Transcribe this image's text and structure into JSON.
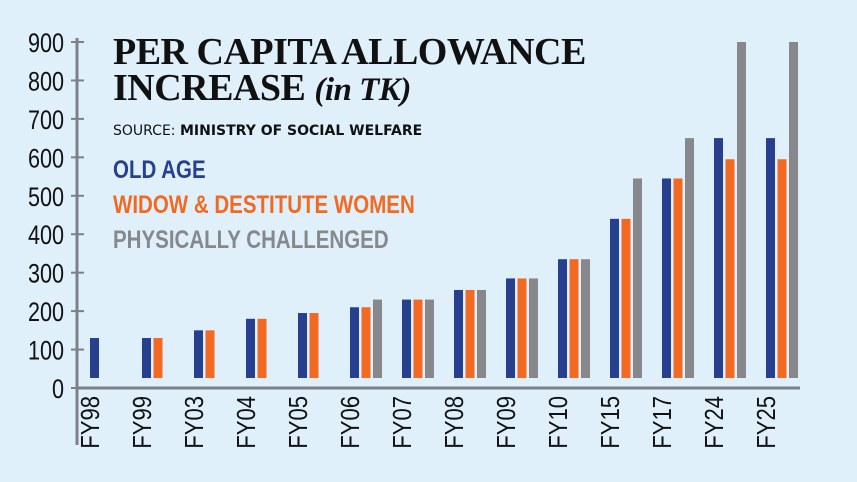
{
  "title_main_line1": "PER CAPITA ALLOWANCE",
  "title_main_line2": "INCREASE",
  "title_unit": "(in TK)",
  "source_label": "SOURCE:",
  "source_name": "MINISTRY OF SOCIAL WELFARE",
  "chart_data": {
    "type": "bar",
    "title": "PER CAPITA ALLOWANCE INCREASE (in TK)",
    "ylim": [
      0,
      900
    ],
    "yticks": [
      "0",
      "100",
      "200",
      "300",
      "400",
      "500",
      "600",
      "700",
      "800",
      "900"
    ],
    "grid": false,
    "legend_placement": "top-left",
    "categories": [
      "FY98",
      "FY99",
      "FY03",
      "FY04",
      "FY05",
      "FY06",
      "FY07",
      "FY08",
      "FY09",
      "FY10",
      "FY15",
      "FY17",
      "FY24",
      "FY25"
    ],
    "series": [
      {
        "name": "OLD AGE",
        "color": "#263f8e",
        "values": [
          130,
          130,
          150,
          180,
          195,
          210,
          230,
          255,
          285,
          335,
          440,
          545,
          650,
          650
        ]
      },
      {
        "name": "WIDOW & DESTITUTE WOMEN",
        "color": "#f26a21",
        "values": [
          null,
          130,
          150,
          180,
          195,
          210,
          230,
          255,
          285,
          335,
          440,
          545,
          595,
          595
        ]
      },
      {
        "name": "PHYSICALLY CHALLENGED",
        "color": "#86888b",
        "values": [
          null,
          null,
          null,
          null,
          null,
          230,
          230,
          255,
          285,
          335,
          545,
          650,
          900,
          900
        ]
      }
    ]
  }
}
